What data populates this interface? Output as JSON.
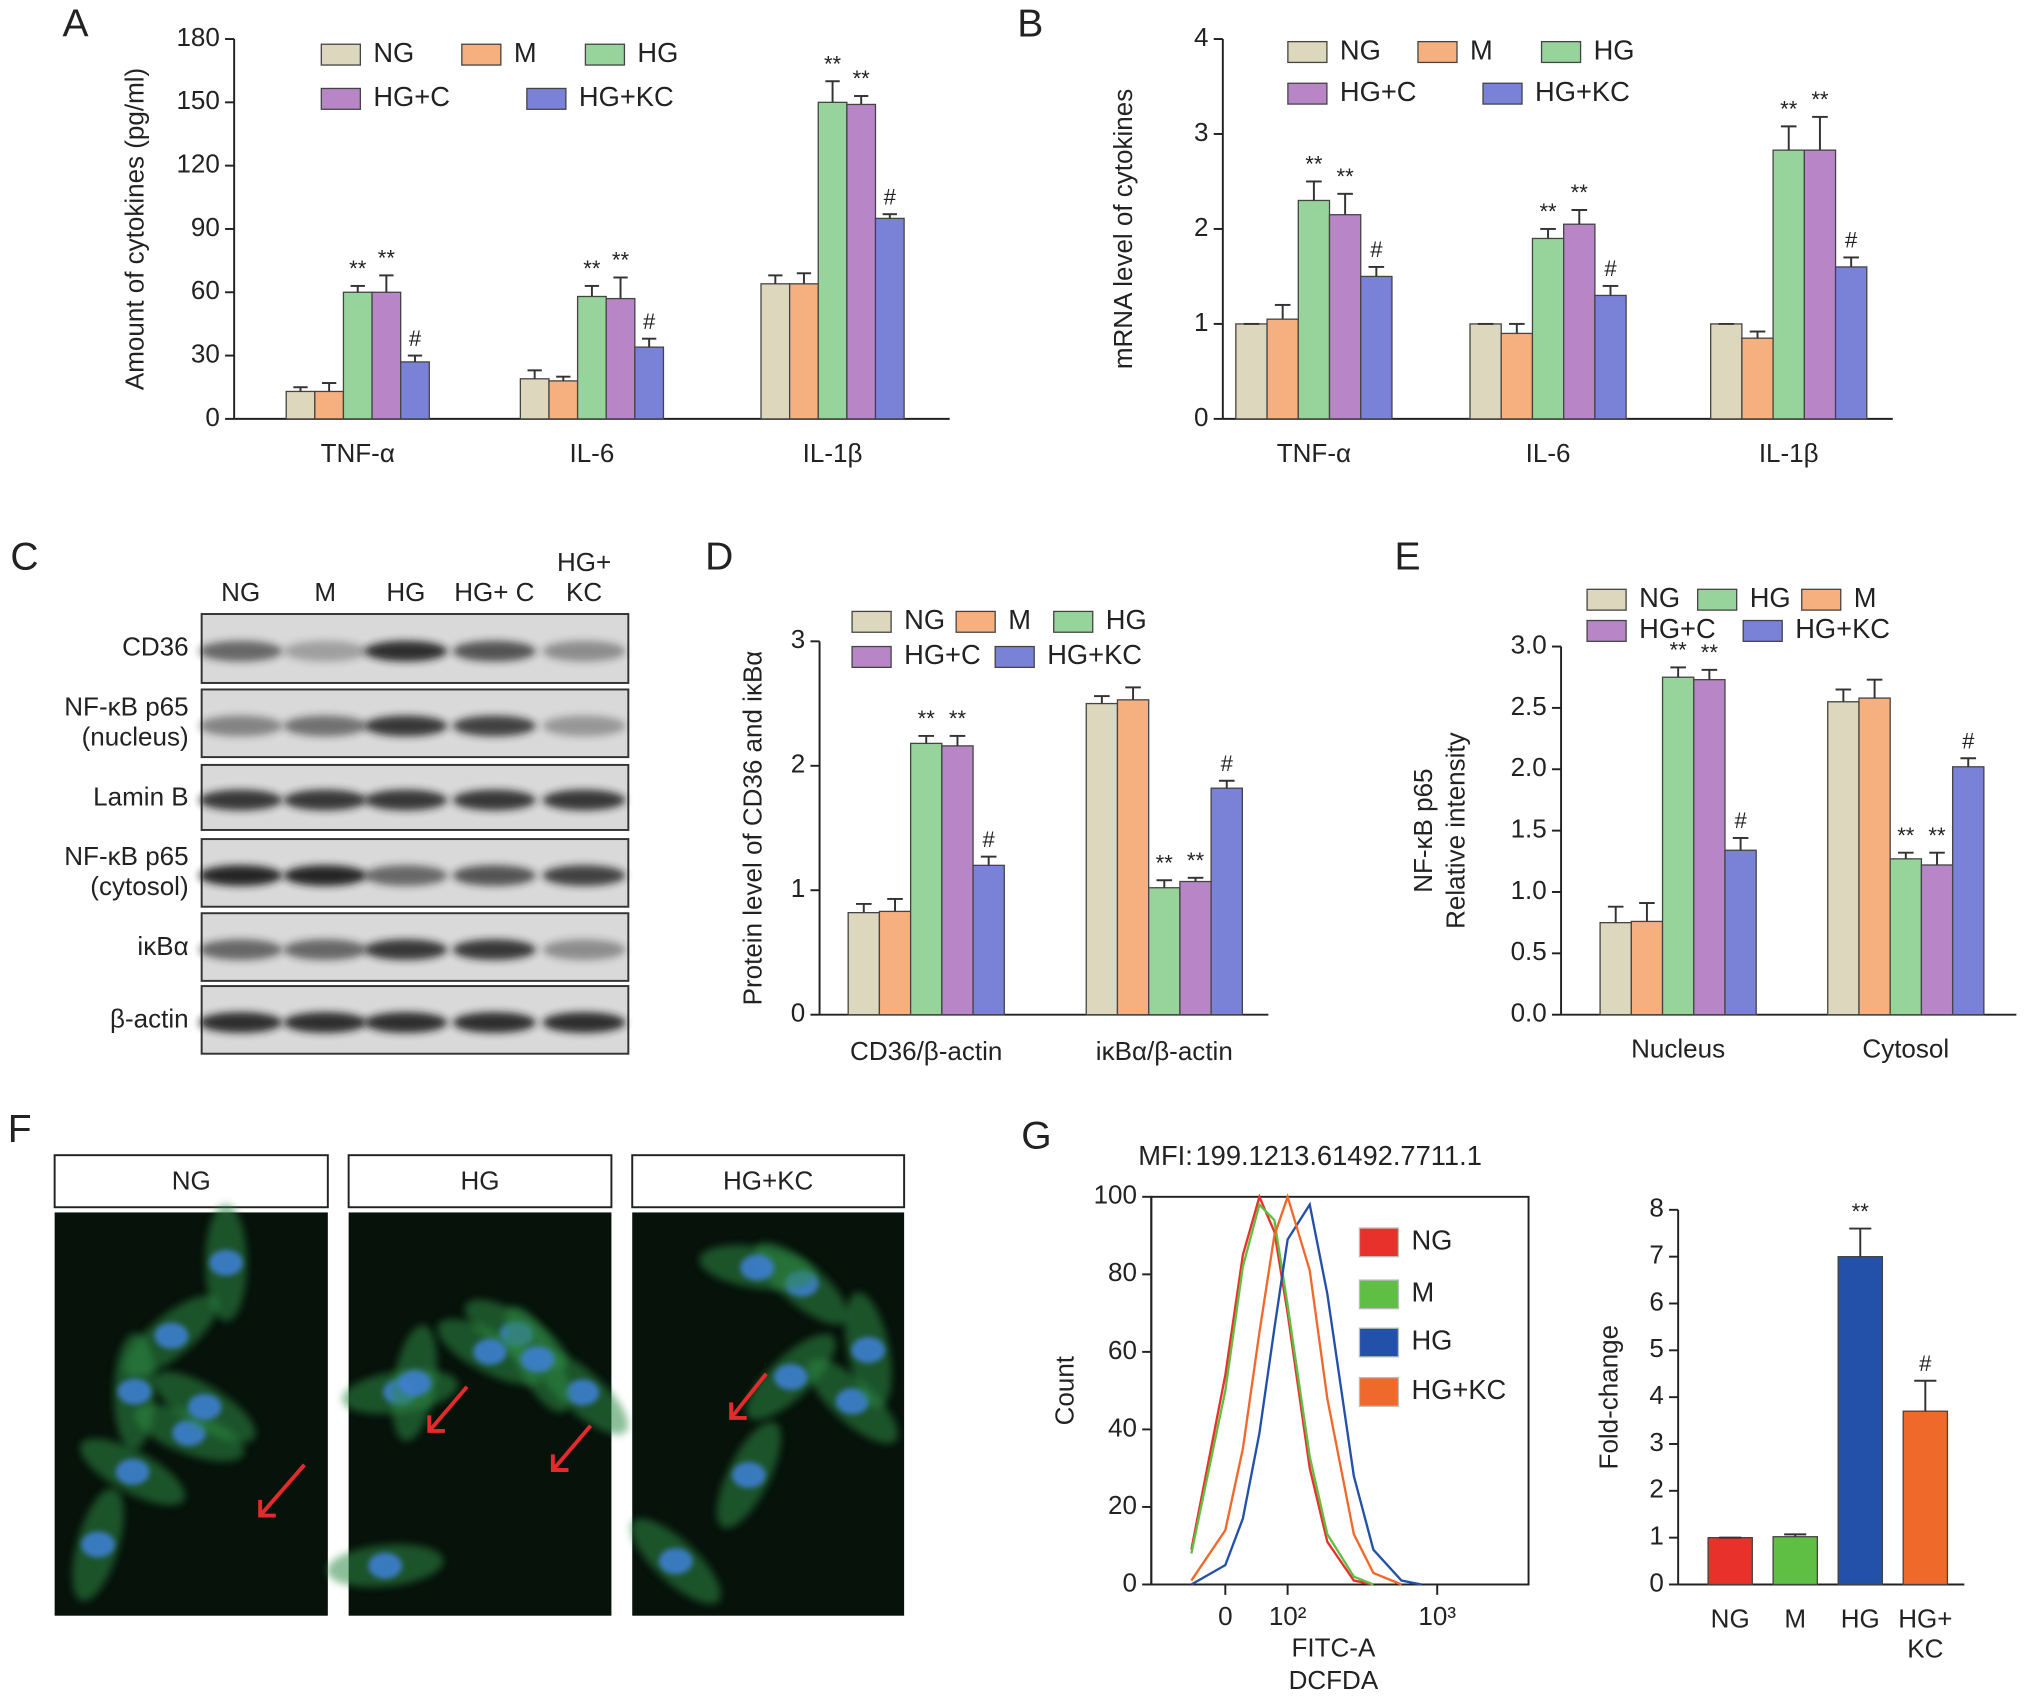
{
  "chart_data": [
    {
      "type": "bar",
      "panel": "A",
      "ylabel": "Amount of cytokines (pg/ml)",
      "categories": [
        "TNF-α",
        "IL-6",
        "IL-1β"
      ],
      "series": [
        {
          "name": "NG",
          "color": "#ddd7bd",
          "values": [
            13,
            19,
            64
          ],
          "errors": [
            2,
            4,
            4
          ]
        },
        {
          "name": "M",
          "color": "#f6b07f",
          "values": [
            13,
            18,
            64
          ],
          "errors": [
            4,
            2,
            5
          ]
        },
        {
          "name": "HG",
          "color": "#97d49b",
          "values": [
            60,
            58,
            150
          ],
          "errors": [
            3,
            5,
            10
          ],
          "annotations": [
            "**",
            "**",
            "**"
          ]
        },
        {
          "name": "HG+C",
          "color": "#b886c6",
          "values": [
            60,
            57,
            149
          ],
          "errors": [
            8,
            10,
            4
          ],
          "annotations": [
            "**",
            "**",
            "**"
          ]
        },
        {
          "name": "HG+KC",
          "color": "#7a82d8",
          "values": [
            27,
            34,
            95
          ],
          "errors": [
            3,
            4,
            2
          ],
          "annotations": [
            "#",
            "#",
            "#"
          ]
        }
      ],
      "ylim": [
        0,
        180
      ],
      "yticks": [
        0,
        30,
        60,
        90,
        120,
        150,
        180
      ]
    },
    {
      "type": "bar",
      "panel": "B",
      "ylabel": "mRNA level of cytokines",
      "categories": [
        "TNF-α",
        "IL-6",
        "IL-1β"
      ],
      "series": [
        {
          "name": "NG",
          "color": "#ddd7bd",
          "values": [
            1,
            1,
            1
          ],
          "errors": [
            0,
            0,
            0
          ]
        },
        {
          "name": "M",
          "color": "#f6b07f",
          "values": [
            1.05,
            0.9,
            0.85
          ],
          "errors": [
            0.15,
            0.1,
            0.07
          ]
        },
        {
          "name": "HG",
          "color": "#97d49b",
          "values": [
            2.3,
            1.9,
            2.83
          ],
          "errors": [
            0.2,
            0.1,
            0.25
          ],
          "annotations": [
            "**",
            "**",
            "**"
          ]
        },
        {
          "name": "HG+C",
          "color": "#b886c6",
          "values": [
            2.15,
            2.05,
            2.83
          ],
          "errors": [
            0.22,
            0.15,
            0.35
          ],
          "annotations": [
            "**",
            "**",
            "**"
          ]
        },
        {
          "name": "HG+KC",
          "color": "#7a82d8",
          "values": [
            1.5,
            1.3,
            1.6
          ],
          "errors": [
            0.1,
            0.1,
            0.1
          ],
          "annotations": [
            "#",
            "#",
            "#"
          ]
        }
      ],
      "ylim": [
        0,
        4
      ],
      "yticks": [
        0,
        1,
        2,
        3,
        4
      ]
    },
    {
      "type": "bar",
      "panel": "D",
      "ylabel": "Protein level of CD36 and iκBα",
      "categories": [
        "CD36/β-actin",
        "iκBα/β-actin"
      ],
      "series": [
        {
          "name": "NG",
          "color": "#ddd7bd",
          "values": [
            0.82,
            2.5
          ],
          "errors": [
            0.07,
            0.06
          ]
        },
        {
          "name": "M",
          "color": "#f6b07f",
          "values": [
            0.83,
            2.53
          ],
          "errors": [
            0.1,
            0.1
          ]
        },
        {
          "name": "HG",
          "color": "#97d49b",
          "values": [
            2.18,
            1.02
          ],
          "errors": [
            0.06,
            0.06
          ],
          "annotations": [
            "**",
            "**"
          ]
        },
        {
          "name": "HG+C",
          "color": "#b886c6",
          "values": [
            2.16,
            1.07
          ],
          "errors": [
            0.08,
            0.03
          ],
          "annotations": [
            "**",
            "**"
          ]
        },
        {
          "name": "HG+KC",
          "color": "#7a82d8",
          "values": [
            1.2,
            1.82
          ],
          "errors": [
            0.07,
            0.06
          ],
          "annotations": [
            "#",
            "#"
          ]
        }
      ],
      "ylim": [
        0,
        3
      ],
      "yticks": [
        0,
        1,
        2,
        3
      ]
    },
    {
      "type": "bar",
      "panel": "E",
      "ylabel": [
        "NF-κB p65",
        "Relative intensity"
      ],
      "categories": [
        "Nucleus",
        "Cytosol"
      ],
      "series": [
        {
          "name": "NG",
          "color": "#ddd7bd",
          "values": [
            0.75,
            2.55
          ],
          "errors": [
            0.13,
            0.1
          ]
        },
        {
          "name": "M",
          "color": "#f6b07f",
          "values": [
            0.76,
            2.58
          ],
          "errors": [
            0.15,
            0.15
          ]
        },
        {
          "name": "HG",
          "color": "#97d49b",
          "values": [
            2.75,
            1.27
          ],
          "errors": [
            0.08,
            0.05
          ],
          "annotations": [
            "**",
            "**"
          ]
        },
        {
          "name": "HG+C",
          "color": "#b886c6",
          "values": [
            2.73,
            1.22
          ],
          "errors": [
            0.08,
            0.1
          ],
          "annotations": [
            "**",
            "**"
          ]
        },
        {
          "name": "HG+KC",
          "color": "#7a82d8",
          "values": [
            1.34,
            2.02
          ],
          "errors": [
            0.1,
            0.07
          ],
          "annotations": [
            "#",
            "#"
          ]
        }
      ],
      "ylim": [
        0,
        3
      ],
      "yticks": [
        {
          "value": 0,
          "label": "0.0"
        },
        0.5,
        {
          "value": 1,
          "label": "1.0"
        },
        1.5,
        {
          "value": 2,
          "label": "2.0"
        },
        2.5,
        {
          "value": 3,
          "label": "3.0"
        }
      ]
    },
    {
      "type": "line",
      "panel": "G",
      "mfi_label": "MFI:",
      "xlabel": [
        "FITC-A",
        "DCFDA"
      ],
      "ylabel": "Count",
      "x_scale": "biexponential",
      "xlim": [
        -125,
        3650
      ],
      "ylim": [
        0,
        100
      ],
      "xticks": [
        0,
        {
          "value": 100,
          "label": "10²"
        },
        {
          "value": 1000,
          "label": "10³"
        }
      ],
      "yticks": [
        0,
        20,
        40,
        60,
        80,
        100
      ],
      "series": [
        {
          "name": "NG",
          "color": "#e8312a",
          "mfi": 199.1,
          "x": [
            -50,
            0,
            25,
            50,
            75,
            100,
            150,
            200,
            300,
            400
          ],
          "values": [
            9,
            54,
            85,
            100,
            91,
            70,
            30,
            11,
            1,
            0
          ]
        },
        {
          "name": "M",
          "color": "#5fbf45",
          "mfi": 213.6,
          "x": [
            -50,
            0,
            25,
            50,
            75,
            100,
            150,
            200,
            300,
            400
          ],
          "values": [
            8,
            50,
            82,
            98,
            94,
            72,
            33,
            13,
            2,
            0
          ]
        },
        {
          "name": "HG",
          "color": "#2350a8",
          "mfi": 1492.7,
          "x": [
            -50,
            0,
            25,
            50,
            75,
            100,
            150,
            200,
            300,
            400,
            600,
            800
          ],
          "values": [
            0,
            5,
            17,
            39,
            66,
            89,
            98,
            75,
            28,
            9,
            1,
            0
          ]
        },
        {
          "name": "HG+KC",
          "color": "#ef6a2a",
          "mfi": 711.1,
          "x": [
            -50,
            0,
            25,
            50,
            75,
            100,
            150,
            200,
            300,
            400,
            600
          ],
          "values": [
            1,
            14,
            35,
            65,
            90,
            100,
            81,
            48,
            13,
            3,
            0
          ]
        }
      ]
    },
    {
      "type": "bar",
      "ylabel": "Fold-change",
      "categories": [
        "NG",
        "M",
        "HG",
        "HG+ KC"
      ],
      "colors": [
        "#e8312a",
        "#5fbf45",
        "#2350a8",
        "#ef6a2a"
      ],
      "values": [
        1,
        1.02,
        7,
        3.7
      ],
      "errors": [
        0,
        0.05,
        0.6,
        0.65
      ],
      "annotations": [
        null,
        null,
        "**",
        "#"
      ],
      "ylim": [
        0,
        8
      ],
      "yticks": [
        0,
        1,
        2,
        3,
        4,
        5,
        6,
        7,
        8
      ]
    }
  ],
  "blot": {
    "panel": "C",
    "columns": [
      "NG",
      "M",
      "HG",
      "HG+ C",
      "HG+ KC"
    ],
    "rows": [
      "CD36",
      "NF-κB p65 (nucleus)",
      "Lamin B",
      "NF-κB p65 (cytosol)",
      "iκBα",
      "β-actin"
    ]
  },
  "micrographs": {
    "panel": "F",
    "images": [
      "NG",
      "HG",
      "HG+KC"
    ]
  }
}
